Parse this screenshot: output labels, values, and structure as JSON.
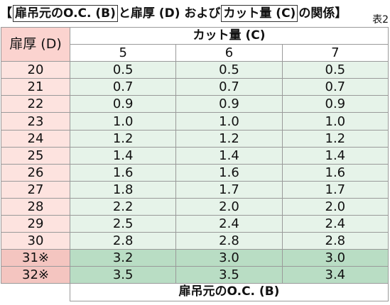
{
  "title": {
    "open_bracket": "【",
    "box1": "扉吊元のO.C. (B)",
    "mid": "と扉厚 (D) および",
    "box2": "カット量 (C)",
    "tail": "の関係",
    "close_bracket": "】",
    "table_no": "表2"
  },
  "header": {
    "d_label": "扉厚 (D)",
    "c_label": "カット量 (C)",
    "c_values": [
      "5",
      "6",
      "7"
    ]
  },
  "rows": [
    {
      "d": "20",
      "v": [
        "0.5",
        "0.5",
        "0.5"
      ]
    },
    {
      "d": "21",
      "v": [
        "0.7",
        "0.7",
        "0.7"
      ]
    },
    {
      "d": "22",
      "v": [
        "0.9",
        "0.9",
        "0.9"
      ]
    },
    {
      "d": "23",
      "v": [
        "1.0",
        "1.0",
        "1.0"
      ]
    },
    {
      "d": "24",
      "v": [
        "1.2",
        "1.2",
        "1.2"
      ]
    },
    {
      "d": "25",
      "v": [
        "1.4",
        "1.4",
        "1.4"
      ]
    },
    {
      "d": "26",
      "v": [
        "1.6",
        "1.6",
        "1.6"
      ]
    },
    {
      "d": "27",
      "v": [
        "1.8",
        "1.7",
        "1.7"
      ]
    },
    {
      "d": "28",
      "v": [
        "2.2",
        "2.0",
        "2.0"
      ]
    },
    {
      "d": "29",
      "v": [
        "2.5",
        "2.4",
        "2.4"
      ]
    },
    {
      "d": "30",
      "v": [
        "2.8",
        "2.8",
        "2.8"
      ]
    },
    {
      "d": "31※",
      "v": [
        "3.2",
        "3.0",
        "3.0"
      ]
    },
    {
      "d": "32※",
      "v": [
        "3.5",
        "3.5",
        "3.4"
      ]
    }
  ],
  "footer": "扉吊元のO.C. (B)",
  "colors": {
    "d_header": "#fbd3cf",
    "d_cell": "#fde3df",
    "value_cell": "#e6f3e9",
    "highlight_d": "#f4c5c0",
    "highlight_value": "#b9ddc4"
  }
}
